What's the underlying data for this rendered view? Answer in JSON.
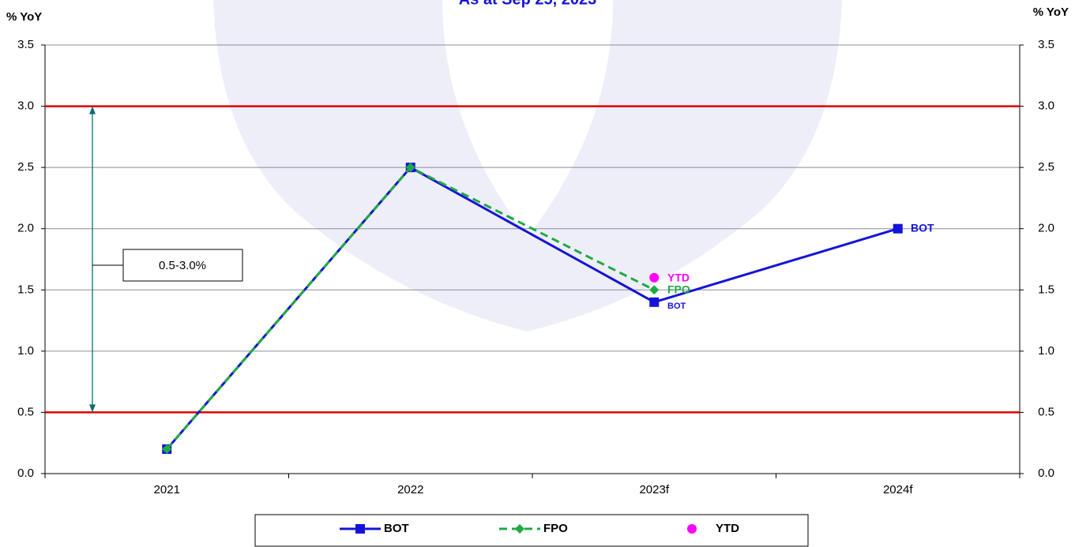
{
  "chart_data": {
    "type": "line",
    "title": "As at Sep 25, 2023",
    "y_label": "% YoY",
    "y2_label": "% YoY",
    "categories": [
      "2021",
      "2022",
      "2023f",
      "2024f"
    ],
    "series": [
      {
        "name": "BOT",
        "color": "#1414d8",
        "style": "solid",
        "marker": "square",
        "values": [
          0.2,
          2.5,
          1.4,
          2.0
        ]
      },
      {
        "name": "FPO",
        "color": "#1faa45",
        "style": "dashed",
        "marker": "diamond",
        "values": [
          0.2,
          2.5,
          1.5,
          null
        ]
      },
      {
        "name": "YTD",
        "color": "#ff00ff",
        "style": "none",
        "marker": "circle",
        "values": [
          null,
          null,
          1.6,
          null
        ]
      }
    ],
    "ylim": [
      0,
      3.5
    ],
    "yticks": [
      {
        "value": 0,
        "label": "0.0"
      },
      0.5,
      {
        "value": 1,
        "label": "1.0"
      },
      1.5,
      {
        "value": 2,
        "label": "2.0"
      },
      2.5,
      {
        "value": 3,
        "label": "3.0"
      },
      3.5
    ],
    "y2lim": [
      0,
      3.5
    ],
    "y2ticks": [
      {
        "value": 0,
        "label": "0.0"
      },
      0.5,
      {
        "value": 1,
        "label": "1.0"
      },
      1.5,
      {
        "value": 2,
        "label": "2.0"
      },
      2.5,
      {
        "value": 3,
        "label": "3.0"
      },
      3.5
    ],
    "target_band": [
      0.5,
      3.0
    ],
    "target_color": "#e00000",
    "annotations": [
      "BOT",
      "YTD",
      "FPO",
      "BOT",
      "0.5-3.0%"
    ],
    "grid": true,
    "legend": "bottom"
  }
}
